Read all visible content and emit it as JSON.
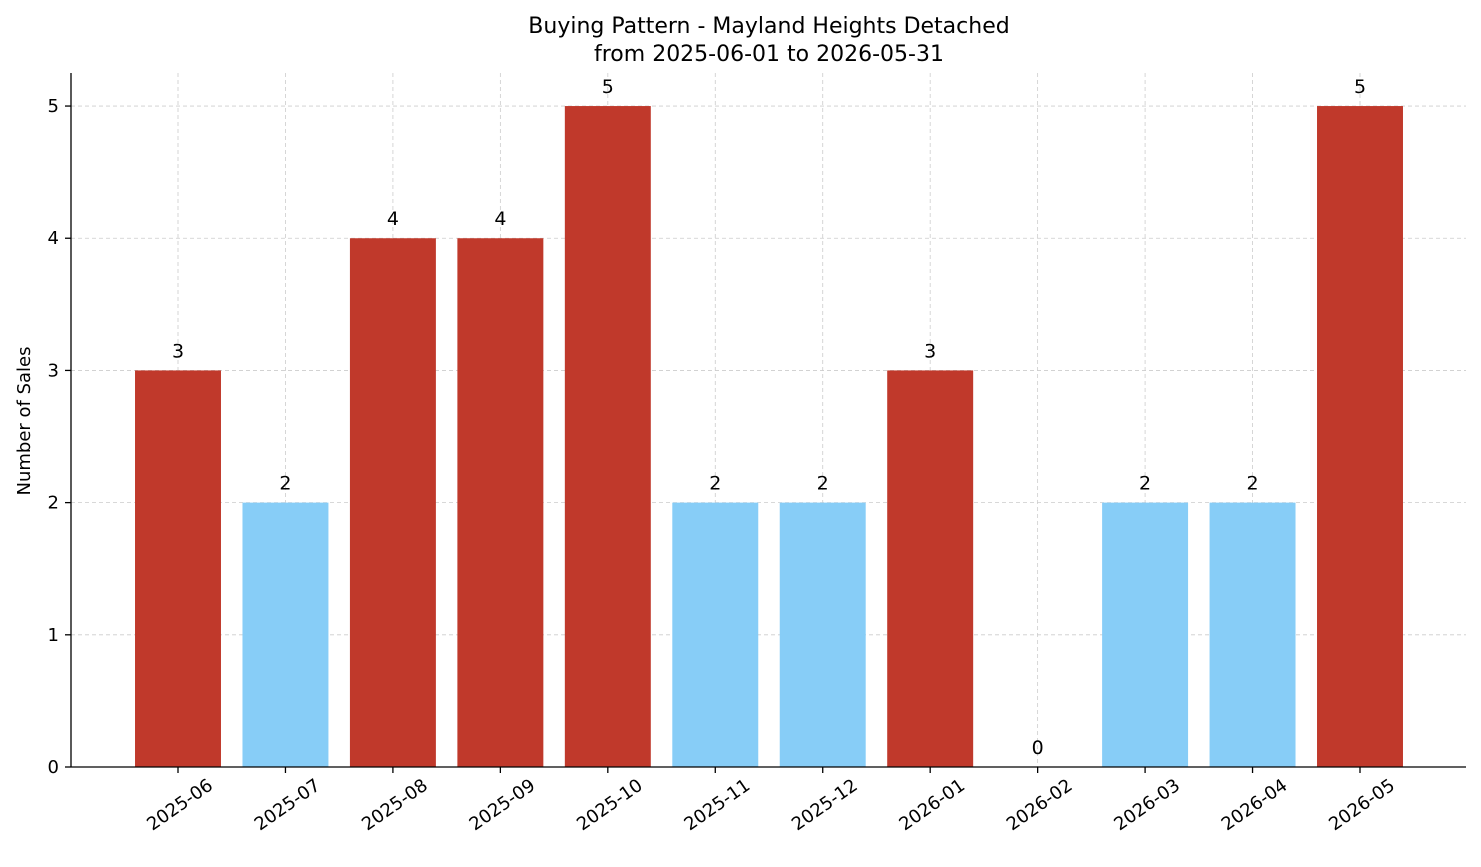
{
  "chart_data": {
    "type": "bar",
    "title": "Buying Pattern - Mayland Heights Detached",
    "subtitle": "from 2025-06-01 to 2026-05-31",
    "xlabel": "",
    "ylabel": "Number of Sales",
    "categories": [
      "2025-06",
      "2025-07",
      "2025-08",
      "2025-09",
      "2025-10",
      "2025-11",
      "2025-12",
      "2026-01",
      "2026-02",
      "2026-03",
      "2026-04",
      "2026-05"
    ],
    "values": [
      3,
      2,
      4,
      4,
      5,
      2,
      2,
      3,
      0,
      2,
      2,
      5
    ],
    "bar_colors": [
      "#c0392b",
      "#87cdf7",
      "#c0392b",
      "#c0392b",
      "#c0392b",
      "#87cdf7",
      "#87cdf7",
      "#c0392b",
      "#87cdf7",
      "#87cdf7",
      "#87cdf7",
      "#c0392b"
    ],
    "yticks": [
      0,
      1,
      2,
      3,
      4,
      5
    ],
    "ylim": [
      0,
      5.25
    ],
    "grid": true,
    "legend": "none"
  }
}
